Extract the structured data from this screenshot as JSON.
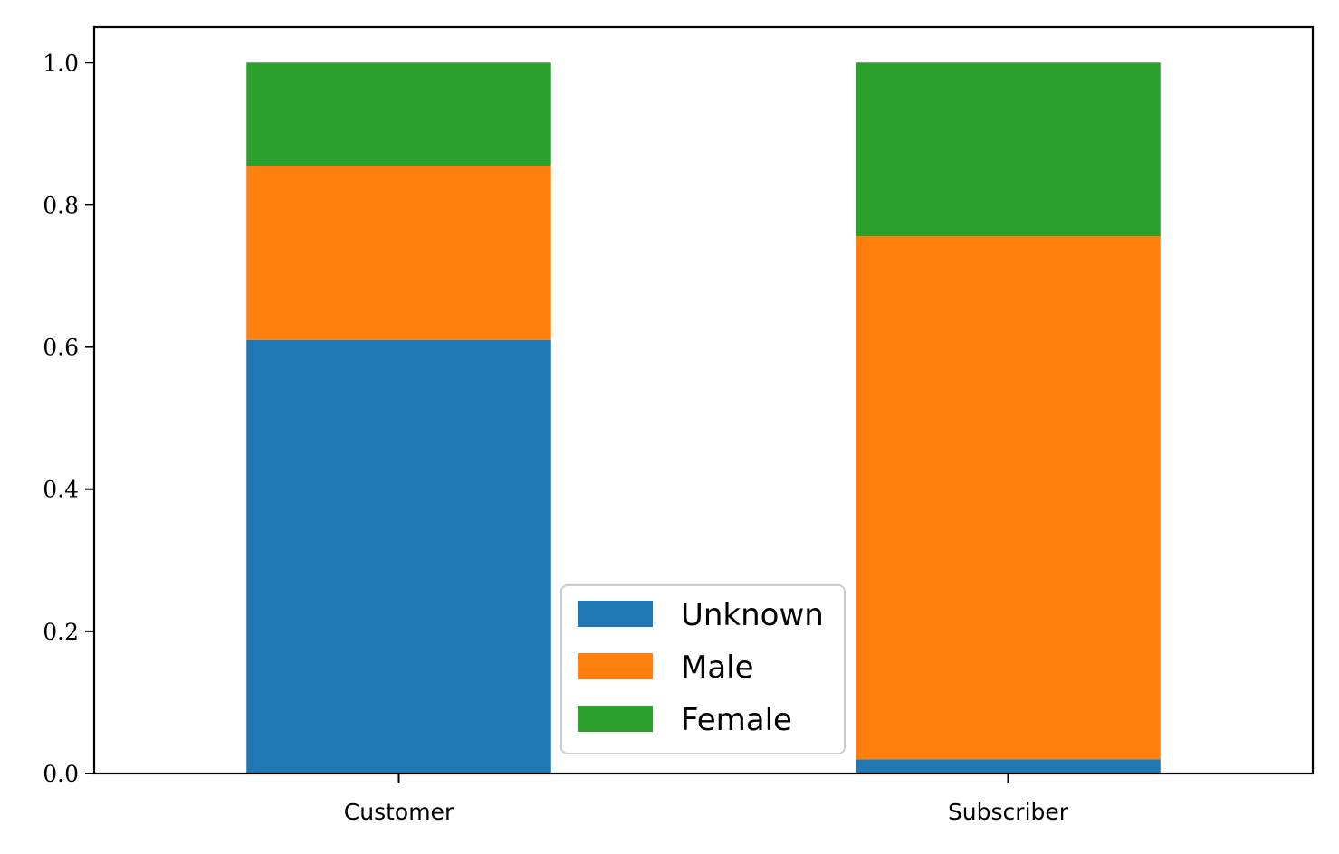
{
  "chart_data": {
    "type": "bar",
    "stacked": true,
    "title": "",
    "xlabel": "",
    "ylabel": "",
    "categories": [
      "Customer",
      "Subscriber"
    ],
    "series": [
      {
        "name": "Unknown",
        "color": "#1f77b4",
        "values": [
          0.61,
          0.02
        ]
      },
      {
        "name": "Male",
        "color": "#ff7f0e",
        "values": [
          0.245,
          0.736
        ]
      },
      {
        "name": "Female",
        "color": "#2ca02c",
        "values": [
          0.145,
          0.244
        ]
      }
    ],
    "ylim": [
      0,
      1.05
    ],
    "yticks": [
      "0.0",
      "0.2",
      "0.4",
      "0.6",
      "0.8",
      "1.0"
    ],
    "grid": false,
    "legend": "lower-center"
  }
}
